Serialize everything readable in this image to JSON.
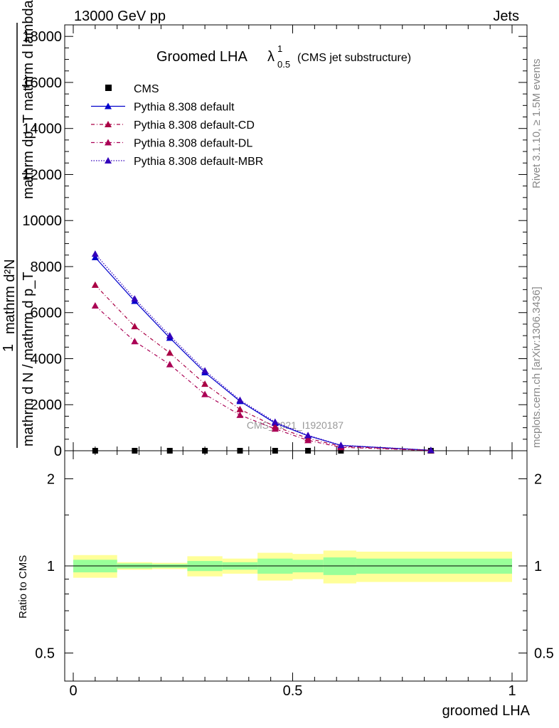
{
  "header": {
    "beam": "13000 GeV pp",
    "process": "Jets"
  },
  "side": {
    "rivet": "Rivet 3.1.10, ≥ 1.5M events",
    "mcplots": "mcplots.cern.ch [arXiv:1306.3436]"
  },
  "chart_data": {
    "type": "line",
    "title_main": "Groomed LHA",
    "title_symbol": "λ",
    "title_sup": "1",
    "title_sub": "0.5",
    "title_note": "(CMS jet substructure)",
    "xlabel": "groomed LHA",
    "ylabel": {
      "one": "1",
      "num_left": "",
      "num": "mathrm d²N",
      "top": "mathrm dp_T mathrm d lambda",
      "bottom": "mathrm d N / mathrm d p_T"
    },
    "watermark": "CMS_2021_I1920187",
    "xlim": [
      0,
      1
    ],
    "ylim": [
      0,
      18500
    ],
    "x_ticks": [
      0,
      0.5,
      1
    ],
    "x_tick_labels": [
      "0",
      "0.5",
      "1"
    ],
    "y_ticks": [
      0,
      2000,
      4000,
      6000,
      8000,
      10000,
      12000,
      14000,
      16000,
      18000
    ],
    "y_tick_labels": [
      "0",
      "2000",
      "4000",
      "6000",
      "8000",
      "10000",
      "12000",
      "14000",
      "16000",
      "18000"
    ],
    "legend_position": "top-left",
    "series": [
      {
        "name": "CMS",
        "style": "data",
        "color": "#000000",
        "x": [
          0.05,
          0.14,
          0.22,
          0.3,
          0.38,
          0.46,
          0.535,
          0.61,
          0.815
        ],
        "values": [
          0,
          0,
          0,
          0,
          0,
          0,
          0,
          0,
          0
        ]
      },
      {
        "name": "Pythia 8.308 default",
        "style": "solid",
        "color": "#0000cc",
        "x": [
          0.05,
          0.14,
          0.22,
          0.3,
          0.38,
          0.46,
          0.535,
          0.61,
          0.815
        ],
        "values": [
          8400,
          6500,
          4900,
          3400,
          2150,
          1200,
          650,
          230,
          20
        ]
      },
      {
        "name": "Pythia 8.308 default-CD",
        "style": "dashdot",
        "color": "#aa0044",
        "x": [
          0.05,
          0.14,
          0.22,
          0.3,
          0.38,
          0.46,
          0.535,
          0.61,
          0.815
        ],
        "values": [
          7200,
          5400,
          4250,
          2900,
          1800,
          1050,
          540,
          190,
          15
        ]
      },
      {
        "name": "Pythia 8.308 default-DL",
        "style": "dashdot",
        "color": "#aa0055",
        "x": [
          0.05,
          0.14,
          0.22,
          0.3,
          0.38,
          0.46,
          0.535,
          0.61,
          0.815
        ],
        "values": [
          6300,
          4750,
          3750,
          2450,
          1550,
          950,
          450,
          150,
          10
        ]
      },
      {
        "name": "Pythia 8.308 default-MBR",
        "style": "dotted",
        "color": "#3300bb",
        "x": [
          0.05,
          0.14,
          0.22,
          0.3,
          0.38,
          0.46,
          0.535,
          0.61,
          0.815
        ],
        "values": [
          8550,
          6600,
          5000,
          3480,
          2200,
          1250,
          670,
          240,
          22
        ]
      }
    ],
    "ratio": {
      "ylabel": "Ratio to CMS",
      "ticks": [
        0.5,
        1,
        2
      ],
      "tick_labels": [
        "0.5",
        "1",
        "2"
      ],
      "ylim": [
        0.4,
        2.5
      ],
      "log": true,
      "bands": [
        {
          "x0": 0.0,
          "x1": 0.1,
          "stat_lo": 0.95,
          "stat_hi": 1.05,
          "tot_lo": 0.91,
          "tot_hi": 1.09
        },
        {
          "x0": 0.1,
          "x1": 0.18,
          "stat_lo": 0.98,
          "stat_hi": 1.02,
          "tot_lo": 0.97,
          "tot_hi": 1.03
        },
        {
          "x0": 0.18,
          "x1": 0.26,
          "stat_lo": 0.985,
          "stat_hi": 1.015,
          "tot_lo": 0.975,
          "tot_hi": 1.025
        },
        {
          "x0": 0.26,
          "x1": 0.34,
          "stat_lo": 0.96,
          "stat_hi": 1.04,
          "tot_lo": 0.92,
          "tot_hi": 1.08
        },
        {
          "x0": 0.34,
          "x1": 0.42,
          "stat_lo": 0.97,
          "stat_hi": 1.03,
          "tot_lo": 0.94,
          "tot_hi": 1.06
        },
        {
          "x0": 0.42,
          "x1": 0.5,
          "stat_lo": 0.94,
          "stat_hi": 1.06,
          "tot_lo": 0.89,
          "tot_hi": 1.11
        },
        {
          "x0": 0.5,
          "x1": 0.57,
          "stat_lo": 0.95,
          "stat_hi": 1.05,
          "tot_lo": 0.9,
          "tot_hi": 1.1
        },
        {
          "x0": 0.57,
          "x1": 0.645,
          "stat_lo": 0.93,
          "stat_hi": 1.07,
          "tot_lo": 0.87,
          "tot_hi": 1.13
        },
        {
          "x0": 0.645,
          "x1": 1.0,
          "stat_lo": 0.94,
          "stat_hi": 1.06,
          "tot_lo": 0.88,
          "tot_hi": 1.12
        }
      ],
      "colors": {
        "stat": "#99ff99",
        "tot": "#ffff99"
      }
    }
  }
}
